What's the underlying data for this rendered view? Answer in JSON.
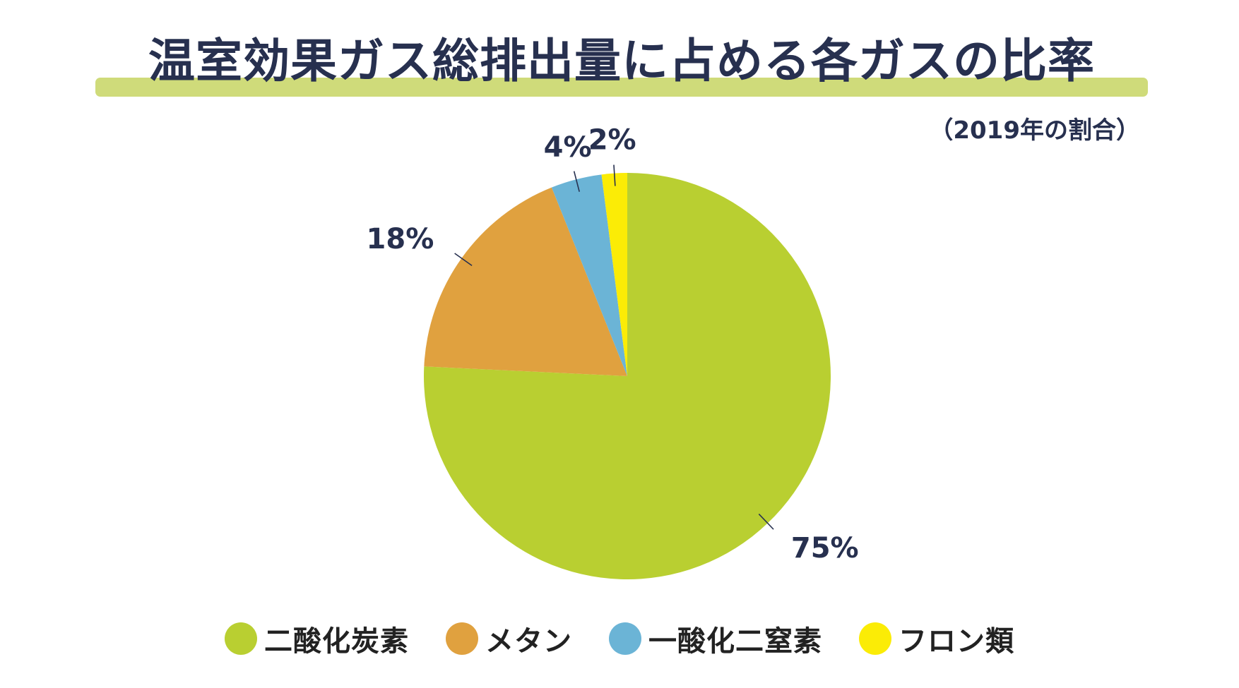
{
  "colors": {
    "title_bar": "#cfdb7a",
    "text": "#27304f"
  },
  "chart_data": {
    "type": "pie",
    "title": "温室効果ガス総排出量に占める各ガスの比率",
    "subtitle": "（2019年の割合）",
    "categories": [
      "二酸化炭素",
      "メタン",
      "一酸化二窒素",
      "フロン類"
    ],
    "values": [
      75,
      18,
      4,
      2
    ],
    "value_labels": [
      "75%",
      "18%",
      "4%",
      "2%"
    ],
    "colors": [
      "#b9cf31",
      "#e0a13f",
      "#6bb4d6",
      "#fbec06"
    ],
    "legend_position": "bottom",
    "start_angle": "12 o'clock",
    "direction": "clockwise"
  }
}
